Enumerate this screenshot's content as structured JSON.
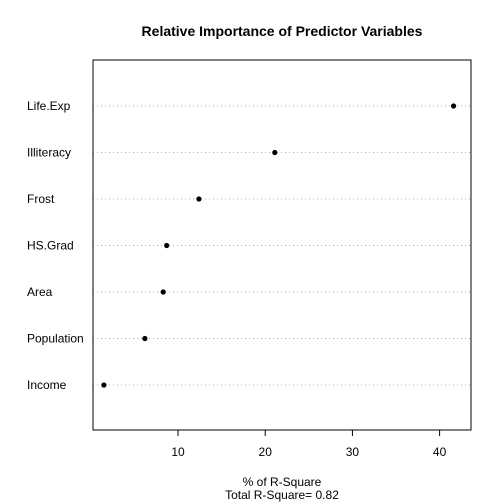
{
  "chart_data": {
    "type": "scatter",
    "style": "dotchart",
    "title": "Relative Importance of Predictor Variables",
    "xlabel": "% of R-Square",
    "subtitle": "Total R-Square= 0.82",
    "ylabel": "",
    "xlim": [
      0.25,
      43.6
    ],
    "xticks": [
      10,
      20,
      30,
      40
    ],
    "grid": "dotted horizontal lines per category",
    "point_color": "#000000",
    "categories": [
      "Life.Exp",
      "Illiteracy",
      "Frost",
      "HS.Grad",
      "Area",
      "Population",
      "Income"
    ],
    "values": [
      41.6,
      21.1,
      12.4,
      8.7,
      8.3,
      6.2,
      1.5
    ]
  }
}
